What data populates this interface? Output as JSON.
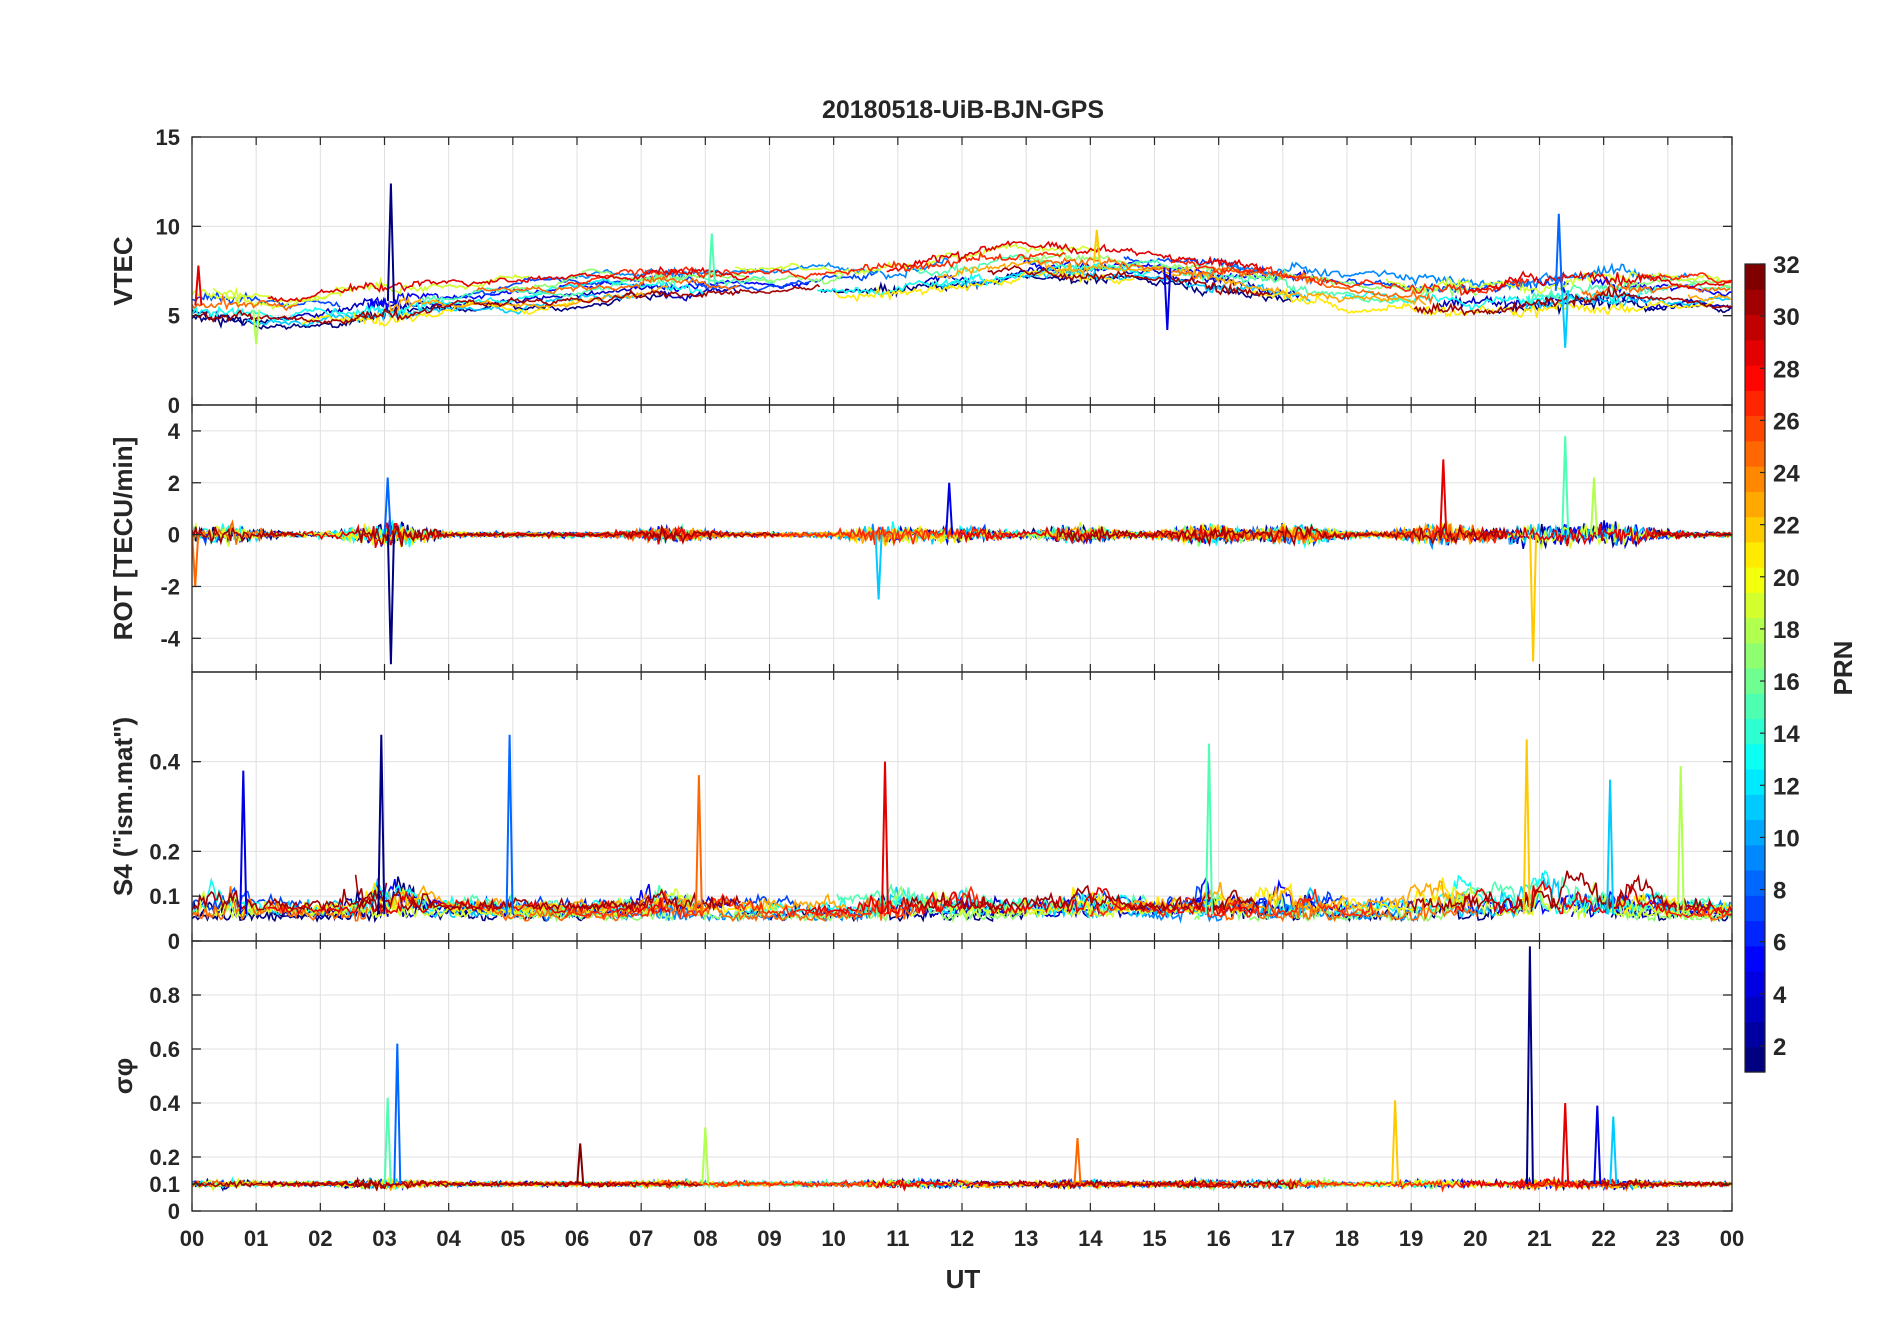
{
  "chart_data": {
    "type": "line",
    "title": "20180518-UiB-BJN-GPS",
    "xlabel": "UT",
    "x_ticks": [
      "00",
      "01",
      "02",
      "03",
      "04",
      "05",
      "06",
      "07",
      "08",
      "09",
      "10",
      "11",
      "12",
      "13",
      "14",
      "15",
      "16",
      "17",
      "18",
      "19",
      "20",
      "21",
      "22",
      "23",
      "00"
    ],
    "xlim_hours": [
      0,
      24
    ],
    "grid": true,
    "colorbar": {
      "label": "PRN",
      "range": [
        1,
        32
      ],
      "ticks": [
        "2",
        "4",
        "6",
        "8",
        "10",
        "12",
        "14",
        "16",
        "18",
        "20",
        "22",
        "24",
        "26",
        "28",
        "30",
        "32"
      ],
      "colormap": "jet",
      "placement": "right"
    },
    "panels": [
      {
        "id": "vtec",
        "ylabel": "VTEC",
        "ylim": [
          0,
          15
        ],
        "y_ticks": [
          "0",
          "5",
          "10",
          "15"
        ],
        "baseline_by_hour": [
          [
            0,
            5.6
          ],
          [
            1.5,
            5.2
          ],
          [
            3,
            5.8
          ],
          [
            5,
            6.2
          ],
          [
            7,
            6.8
          ],
          [
            9,
            6.7
          ],
          [
            11,
            7.2
          ],
          [
            13,
            8.0
          ],
          [
            14.5,
            7.9
          ],
          [
            16,
            7.4
          ],
          [
            18,
            6.4
          ],
          [
            20,
            6.0
          ],
          [
            22,
            6.6
          ],
          [
            24,
            6.3
          ]
        ],
        "spikes": [
          [
            3.1,
            12.4
          ],
          [
            21.3,
            10.7
          ],
          [
            8.1,
            9.6
          ],
          [
            14.1,
            9.8
          ],
          [
            0.1,
            7.8
          ],
          [
            15.2,
            4.2
          ],
          [
            21.4,
            3.2
          ],
          [
            1.0,
            3.4
          ]
        ]
      },
      {
        "id": "rot",
        "ylabel": "ROT [TECU/min]",
        "ylim": [
          -5.3,
          5
        ],
        "y_ticks": [
          "-4",
          "-2",
          "0",
          "2",
          "4"
        ],
        "baseline": 0,
        "spikes": [
          [
            3.1,
            -5.0
          ],
          [
            3.05,
            2.2
          ],
          [
            21.4,
            3.8
          ],
          [
            20.9,
            -4.9
          ],
          [
            19.5,
            2.9
          ],
          [
            11.8,
            2.0
          ],
          [
            10.7,
            -2.5
          ],
          [
            21.85,
            2.2
          ],
          [
            0.05,
            -2.0
          ]
        ]
      },
      {
        "id": "s4",
        "ylabel": "S4 (\"ism.mat\")",
        "ylim": [
          0,
          0.6
        ],
        "y_ticks": [
          "0",
          "0.1",
          "0.2",
          "0.4"
        ],
        "baseline": 0.06,
        "spikes": [
          [
            2.95,
            0.46
          ],
          [
            4.95,
            0.46
          ],
          [
            15.85,
            0.44
          ],
          [
            20.8,
            0.45
          ],
          [
            10.8,
            0.4
          ],
          [
            0.8,
            0.38
          ],
          [
            22.1,
            0.36
          ],
          [
            23.2,
            0.39
          ],
          [
            7.9,
            0.37
          ]
        ]
      },
      {
        "id": "sigma_phi",
        "ylabel": "σφ",
        "ylim": [
          0,
          1
        ],
        "y_ticks": [
          "0",
          "0.1",
          "0.2",
          "0.4",
          "0.6",
          "0.8"
        ],
        "baseline": 0.1,
        "spikes": [
          [
            20.85,
            0.98
          ],
          [
            3.2,
            0.62
          ],
          [
            3.05,
            0.42
          ],
          [
            18.75,
            0.41
          ],
          [
            21.4,
            0.4
          ],
          [
            21.9,
            0.39
          ],
          [
            22.15,
            0.35
          ],
          [
            8.0,
            0.31
          ],
          [
            13.8,
            0.27
          ],
          [
            6.05,
            0.25
          ]
        ]
      }
    ]
  }
}
